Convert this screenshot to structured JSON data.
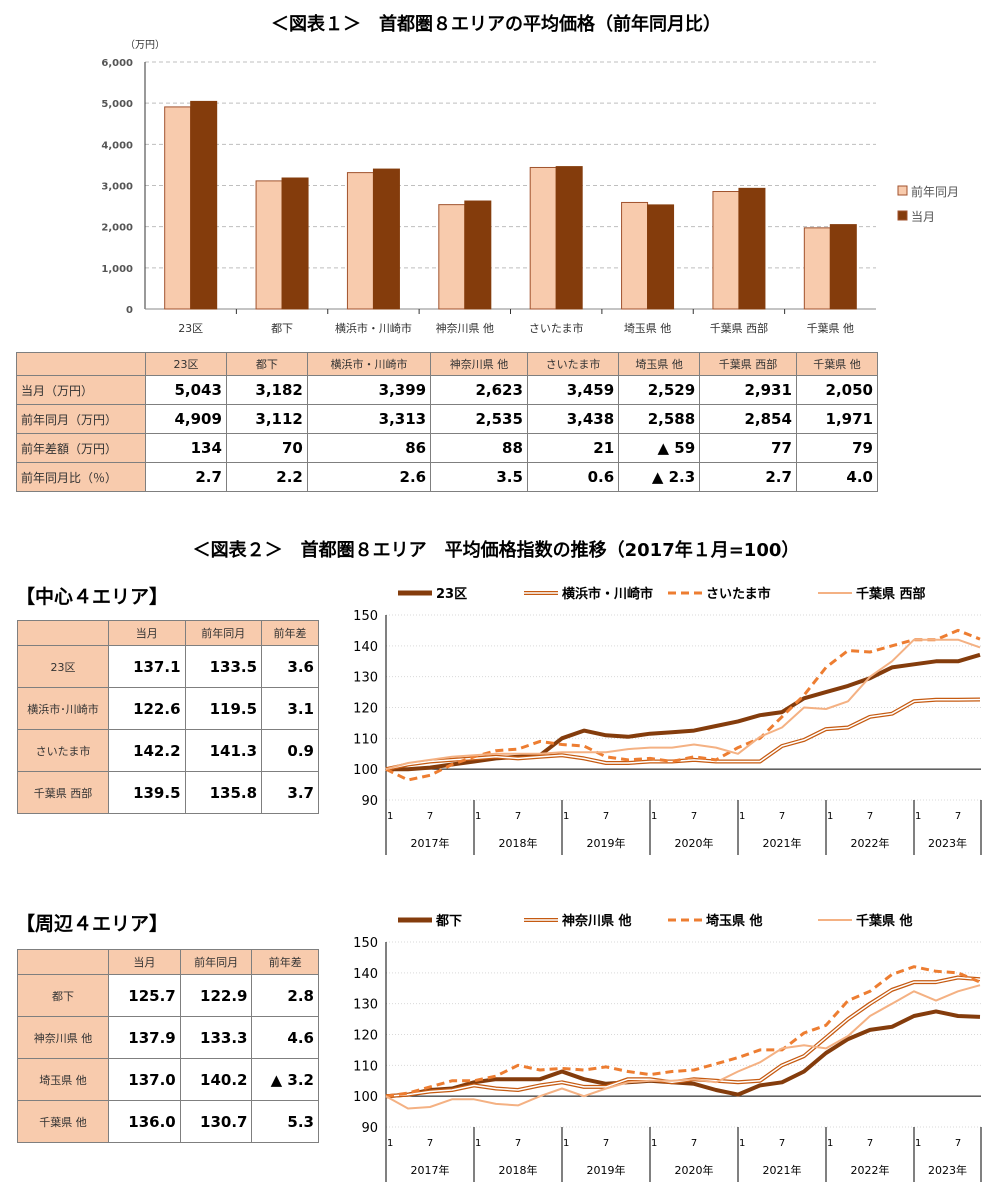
{
  "fig1": {
    "title": "＜図表１＞　首都圏８エリアの平均価格（前年同月比）"
  },
  "fig2": {
    "title": "＜図表２＞　首都圏８エリア　平均価格指数の推移（2017年１月=100）"
  },
  "colors": {
    "prev": "#f8cbad",
    "curr": "#843c0c",
    "line_dark": "#843c0c",
    "line_double": "#c55a11",
    "line_dash": "#ed7d31",
    "line_light": "#f4b183"
  },
  "price_table": {
    "headers": [
      "23区",
      "都下",
      "横浜市・川崎市",
      "神奈川県 他",
      "さいたま市",
      "埼玉県 他",
      "千葉県 西部",
      "千葉県 他"
    ],
    "rows": [
      {
        "label": "当月（万円）",
        "values": [
          "5,043",
          "3,182",
          "3,399",
          "2,623",
          "3,459",
          "2,529",
          "2,931",
          "2,050"
        ]
      },
      {
        "label": "前年同月（万円）",
        "values": [
          "4,909",
          "3,112",
          "3,313",
          "2,535",
          "3,438",
          "2,588",
          "2,854",
          "1,971"
        ]
      },
      {
        "label": "前年差額（万円）",
        "values": [
          "134",
          "70",
          "86",
          "88",
          "21",
          "▲ 59",
          "77",
          "79"
        ]
      },
      {
        "label": "前年同月比（％）",
        "values": [
          "2.7",
          "2.2",
          "2.6",
          "3.5",
          "0.6",
          "▲ 2.3",
          "2.7",
          "4.0"
        ]
      }
    ]
  },
  "center": {
    "label": "【中心４エリア】",
    "headers": [
      "当月",
      "前年同月",
      "前年差"
    ],
    "rows": [
      [
        "23区",
        "137.1",
        "133.5",
        "3.6"
      ],
      [
        "横浜市･川崎市",
        "122.6",
        "119.5",
        "3.1"
      ],
      [
        "さいたま市",
        "142.2",
        "141.3",
        "0.9"
      ],
      [
        "千葉県 西部",
        "139.5",
        "135.8",
        "3.7"
      ]
    ]
  },
  "periph": {
    "label": "【周辺４エリア】",
    "headers": [
      "当月",
      "前年同月",
      "前年差"
    ],
    "rows": [
      [
        "都下",
        "125.7",
        "122.9",
        "2.8"
      ],
      [
        "神奈川県 他",
        "137.9",
        "133.3",
        "4.6"
      ],
      [
        "埼玉県 他",
        "137.0",
        "140.2",
        "▲ 3.2"
      ],
      [
        "千葉県 他",
        "136.0",
        "130.7",
        "5.3"
      ]
    ]
  },
  "chart_data": [
    {
      "type": "bar",
      "unit_label": "（万円）",
      "categories": [
        "23区",
        "都下",
        "横浜市・川崎市",
        "神奈川県 他",
        "さいたま市",
        "埼玉県 他",
        "千葉県 西部",
        "千葉県 他"
      ],
      "ylim": [
        0,
        6000
      ],
      "yticks": [
        "0",
        "1,000",
        "2,000",
        "3,000",
        "4,000",
        "5,000",
        "6,000"
      ],
      "grid": true,
      "legend": "right",
      "series": [
        {
          "name": "前年同月",
          "values": [
            4909,
            3112,
            3313,
            2535,
            3438,
            2588,
            2854,
            1971
          ]
        },
        {
          "name": "当月",
          "values": [
            5043,
            3182,
            3399,
            2623,
            3459,
            2529,
            2931,
            2050
          ]
        }
      ]
    },
    {
      "type": "line",
      "ylim": [
        90,
        150
      ],
      "yticks": [
        "90",
        "100",
        "110",
        "120",
        "130",
        "140",
        "150"
      ],
      "legend": "top",
      "x_start": "2017-01",
      "x_end": "2023-10",
      "x_step_months": 3,
      "month_ticks": [
        "1",
        "7"
      ],
      "years": [
        "2017年",
        "2018年",
        "2019年",
        "2020年",
        "2021年",
        "2022年",
        "2023年"
      ],
      "series": [
        {
          "name": "23区",
          "style": "thick",
          "values": [
            100,
            100,
            100.5,
            101.5,
            102.5,
            103.5,
            104,
            104.5,
            110,
            112.5,
            111,
            110.5,
            111.5,
            112,
            112.5,
            114,
            115.5,
            117.5,
            118.5,
            123,
            125,
            127,
            129.5,
            133,
            134,
            135,
            135,
            137.1
          ]
        },
        {
          "name": "横浜市・川崎市",
          "style": "double",
          "values": [
            100,
            101.5,
            102.5,
            103,
            103.5,
            104,
            103.5,
            104,
            104.5,
            103.5,
            102,
            102,
            102.5,
            102.5,
            103,
            102.5,
            102.5,
            102.5,
            107.5,
            109.5,
            113,
            113.5,
            117,
            118,
            122,
            122.5,
            122.5,
            122.6
          ]
        },
        {
          "name": "さいたま市",
          "style": "dash",
          "values": [
            100,
            96.5,
            98,
            101.5,
            104,
            106,
            106.5,
            109,
            108,
            107.5,
            104,
            103,
            103.5,
            102.5,
            104,
            103,
            107,
            110,
            117,
            124,
            133,
            138.5,
            138,
            140,
            142,
            142,
            145,
            142.2
          ]
        },
        {
          "name": "千葉県 西部",
          "style": "light",
          "values": [
            100,
            102,
            103,
            104,
            104.5,
            105,
            105,
            105,
            105.5,
            105.5,
            105.5,
            106.5,
            107,
            107,
            108,
            107,
            105,
            110.5,
            113.5,
            120,
            119.5,
            122,
            130,
            135,
            142,
            142,
            142,
            139.5
          ]
        }
      ]
    },
    {
      "type": "line",
      "ylim": [
        90,
        150
      ],
      "yticks": [
        "90",
        "100",
        "110",
        "120",
        "130",
        "140",
        "150"
      ],
      "legend": "top",
      "x_start": "2017-01",
      "x_end": "2023-10",
      "x_step_months": 3,
      "month_ticks": [
        "1",
        "7"
      ],
      "years": [
        "2017年",
        "2018年",
        "2019年",
        "2020年",
        "2021年",
        "2022年",
        "2023年"
      ],
      "series": [
        {
          "name": "都下",
          "style": "thick",
          "values": [
            100,
            100.5,
            102,
            102.5,
            104.5,
            105.5,
            105.5,
            105.5,
            108,
            105.5,
            104,
            104.5,
            105,
            104.5,
            104,
            102,
            100.5,
            103.5,
            104.5,
            108,
            114,
            118.5,
            121.5,
            122.5,
            126,
            127.5,
            126,
            125.7
          ]
        },
        {
          "name": "神奈川県 他",
          "style": "double",
          "values": [
            100,
            100.5,
            101.5,
            102,
            103.5,
            102.5,
            102,
            103.5,
            104.5,
            103,
            103,
            105.5,
            105.5,
            104.5,
            105.5,
            105,
            104.5,
            105,
            110,
            113,
            119,
            125,
            130,
            134.5,
            137,
            137,
            138.5,
            137.9
          ]
        },
        {
          "name": "埼玉県 他",
          "style": "dash",
          "values": [
            100,
            101,
            103,
            105,
            105,
            106.5,
            110,
            108.5,
            109,
            108.5,
            109.5,
            108,
            107,
            108,
            108.5,
            110.5,
            112.5,
            115,
            115,
            120.5,
            123,
            131,
            134,
            139.5,
            142,
            140.5,
            140,
            137.0
          ]
        },
        {
          "name": "千葉県 他",
          "style": "light",
          "values": [
            100,
            96,
            96.5,
            99,
            99,
            97.5,
            97,
            100,
            102.5,
            100,
            102.5,
            104.5,
            105,
            105,
            105.5,
            104.5,
            108,
            111,
            115.5,
            116.5,
            115.5,
            119.5,
            126,
            130,
            134,
            131,
            134,
            136.0
          ]
        }
      ]
    }
  ]
}
